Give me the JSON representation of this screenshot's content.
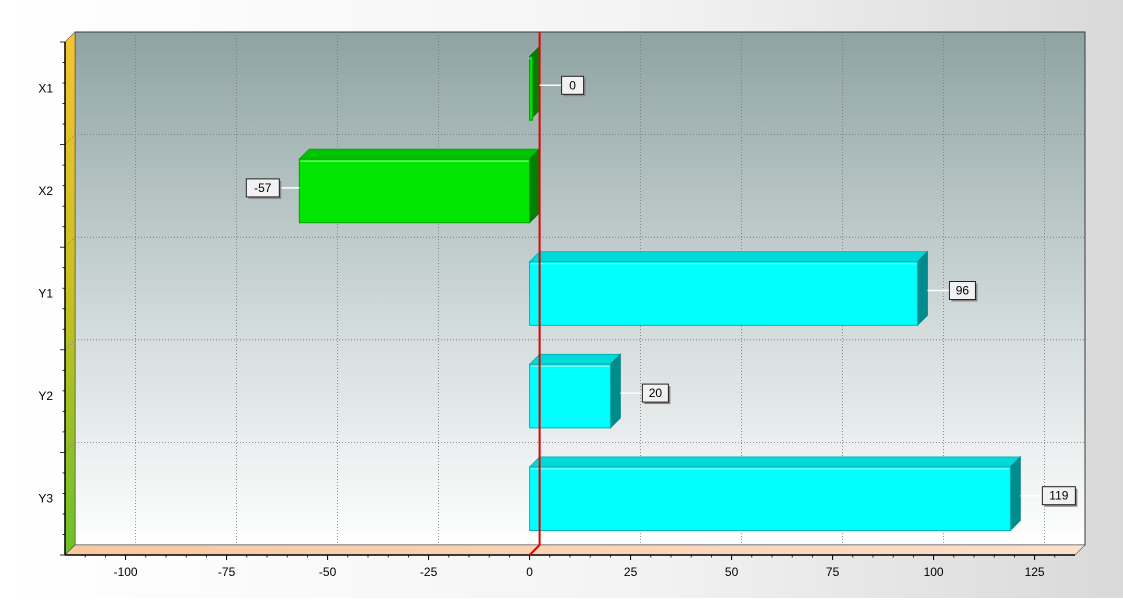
{
  "chart_data": {
    "type": "bar",
    "orientation": "horizontal",
    "style": "3d",
    "categories": [
      "X1",
      "X2",
      "Y1",
      "Y2",
      "Y3"
    ],
    "values": [
      0,
      -57,
      96,
      20,
      119
    ],
    "data_labels": [
      "0",
      "-57",
      "96",
      "20",
      "119"
    ],
    "bar_colors": [
      "#00e600",
      "#00e600",
      "#00ffff",
      "#00ffff",
      "#00ffff"
    ],
    "xlim": [
      -115,
      135
    ],
    "x_ticks": [
      -100,
      -75,
      -50,
      -25,
      0,
      25,
      50,
      75,
      100,
      125
    ],
    "x_tick_labels": [
      "-100",
      "-75",
      "-50",
      "-25",
      "0",
      "25",
      "50",
      "75",
      "100",
      "125"
    ],
    "reference_line": {
      "value": 0,
      "color": "#e00000"
    },
    "grid": true,
    "title": "",
    "xlabel": "",
    "ylabel": ""
  }
}
